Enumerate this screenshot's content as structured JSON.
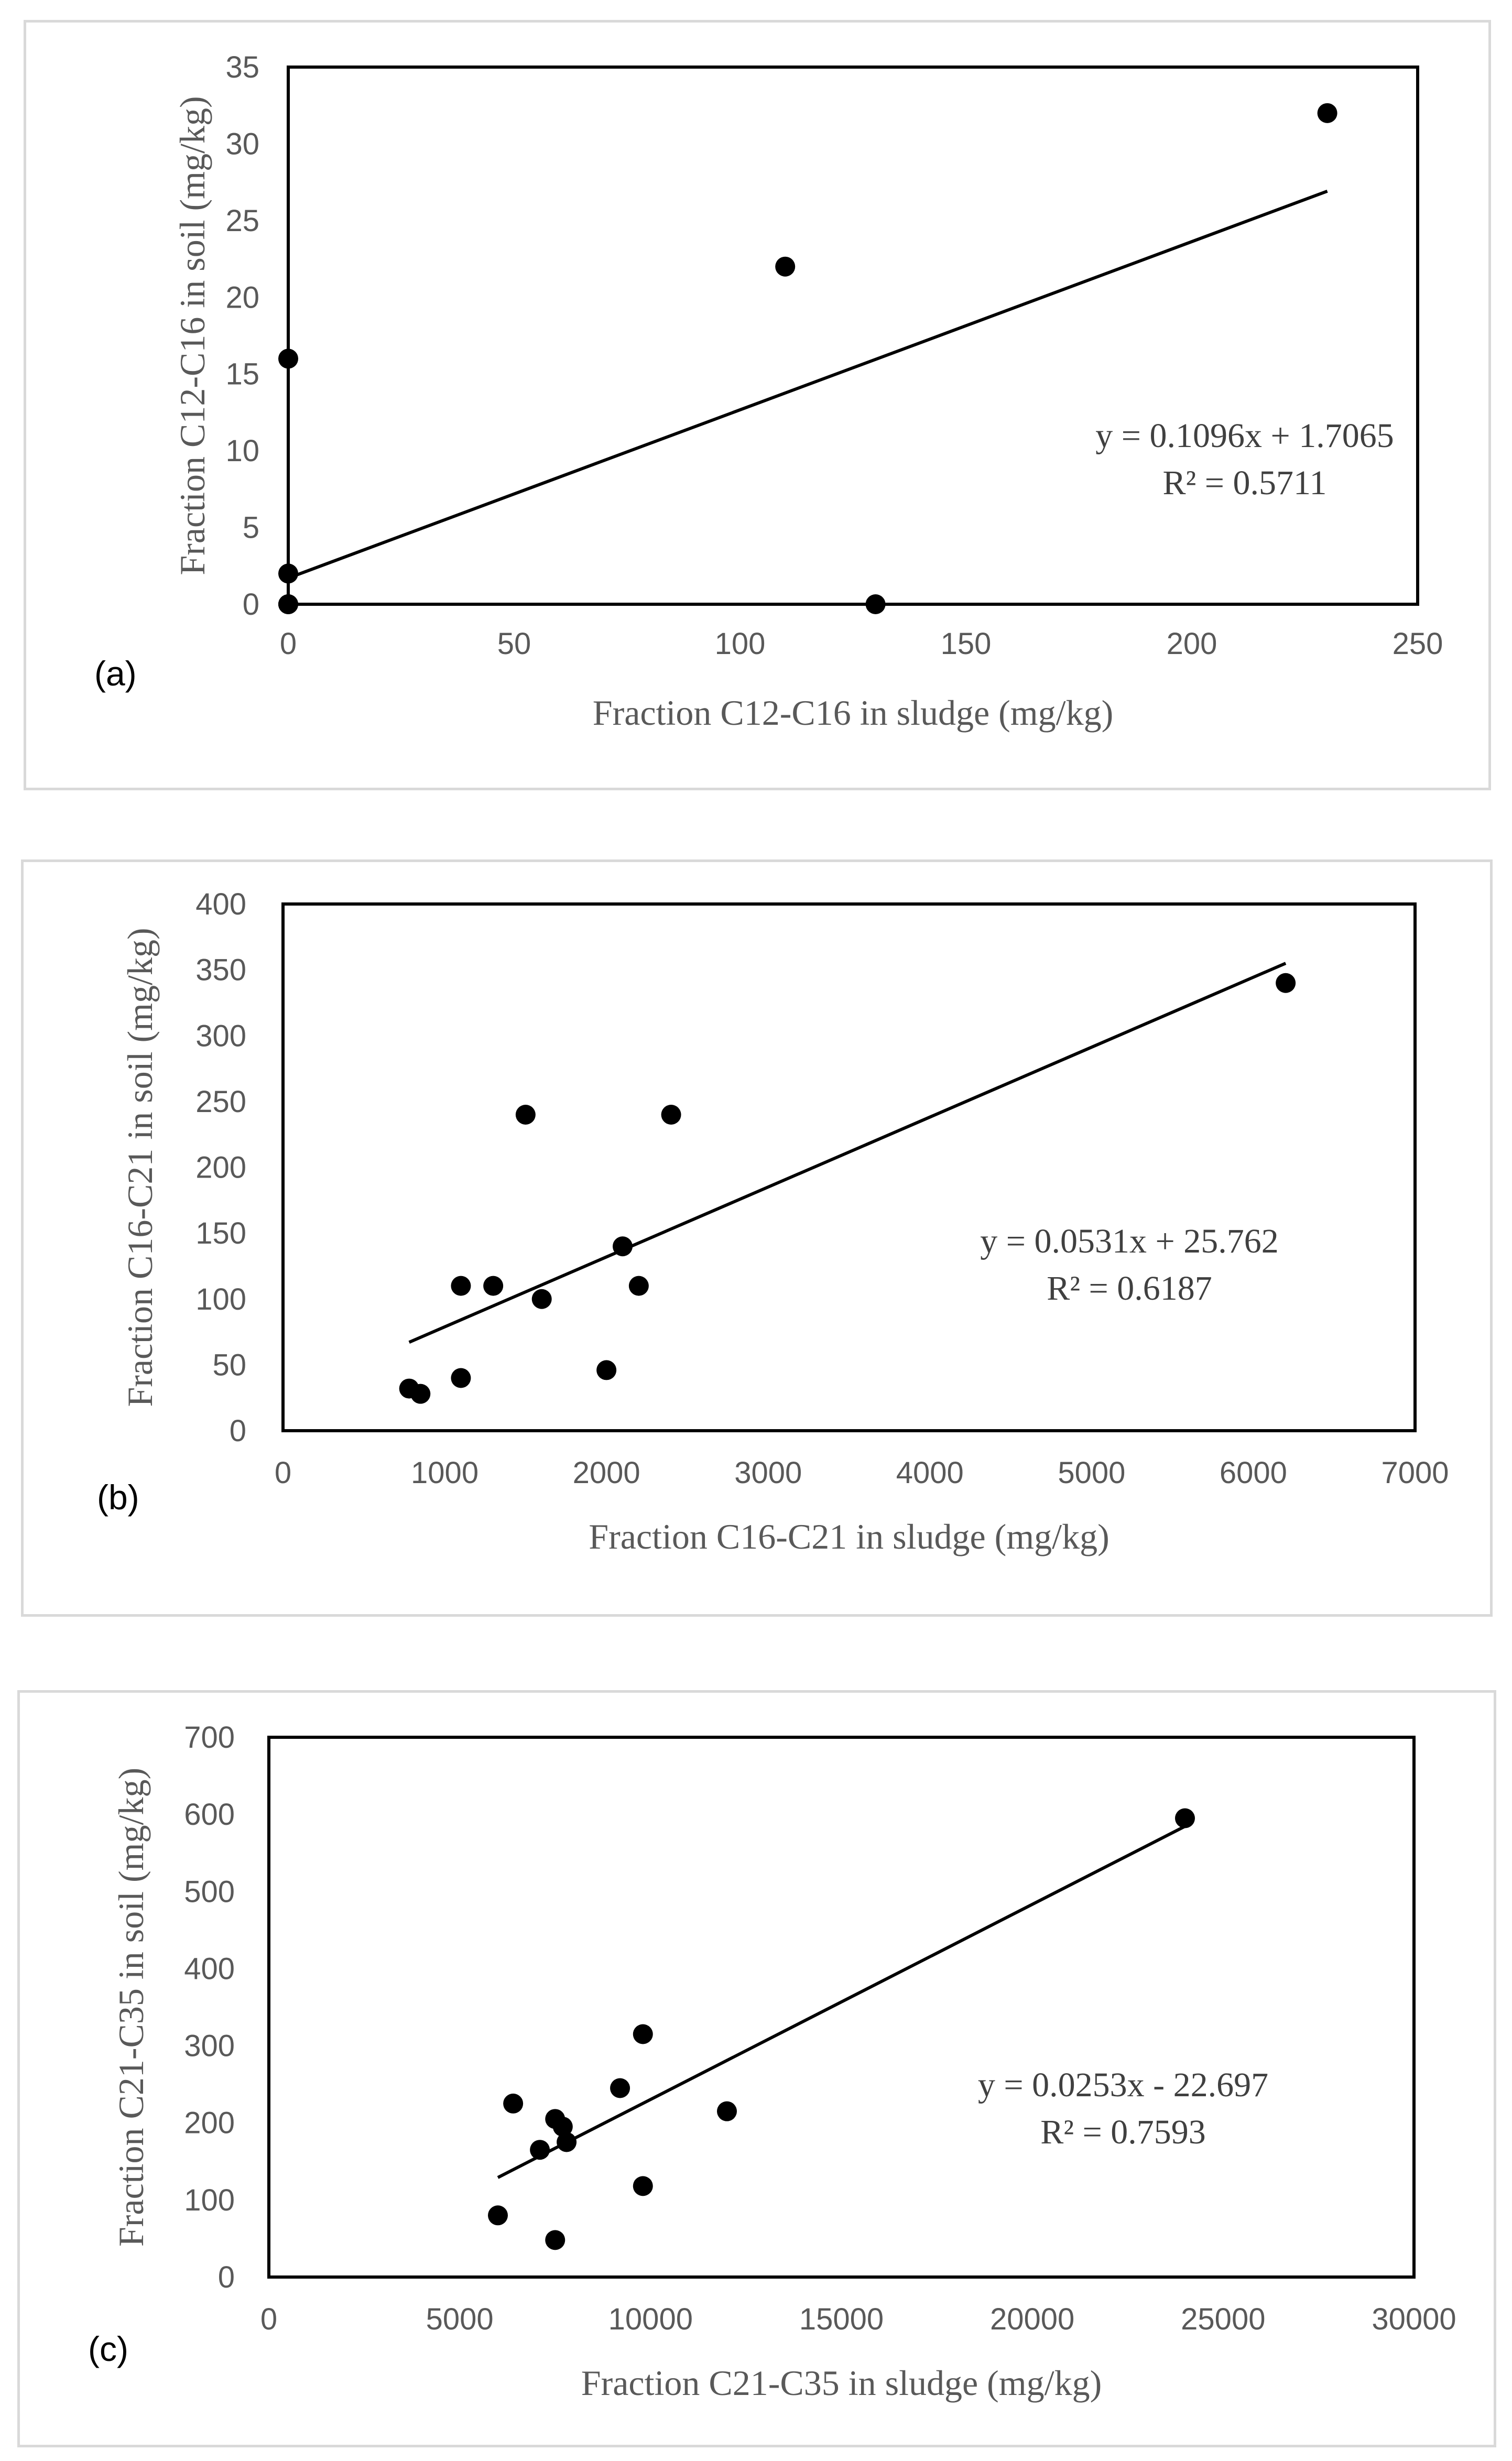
{
  "chart_data": [
    {
      "type": "scatter",
      "panel_label": "(a)",
      "xlabel": "Fraction C12-C16 in sludge (mg/kg)",
      "ylabel": "Fraction C12-C16 in soil (mg/kg)",
      "xlim": [
        0,
        250
      ],
      "ylim": [
        0,
        35
      ],
      "xticks": [
        0,
        50,
        100,
        150,
        200,
        250
      ],
      "yticks": [
        0,
        5,
        10,
        15,
        20,
        25,
        30,
        35
      ],
      "points": [
        [
          0,
          16
        ],
        [
          0,
          2
        ],
        [
          0,
          0
        ],
        [
          0,
          0
        ],
        [
          0,
          0
        ],
        [
          110,
          22
        ],
        [
          130,
          0
        ],
        [
          230,
          32
        ]
      ],
      "trendline": {
        "slope": 0.1096,
        "intercept": 1.7065,
        "x_range": [
          0,
          230
        ]
      },
      "equation": "y = 0.1096x + 1.7065",
      "r2": "R² = 0.5711"
    },
    {
      "type": "scatter",
      "panel_label": "(b)",
      "xlabel": "Fraction C16-C21 in sludge (mg/kg)",
      "ylabel": "Fraction C16-C21 in soil (mg/kg)",
      "xlim": [
        0,
        7000
      ],
      "ylim": [
        0,
        400
      ],
      "xticks": [
        0,
        1000,
        2000,
        3000,
        4000,
        5000,
        6000,
        7000
      ],
      "yticks": [
        0,
        50,
        100,
        150,
        200,
        250,
        300,
        350,
        400
      ],
      "points": [
        [
          780,
          32
        ],
        [
          850,
          28
        ],
        [
          1100,
          110
        ],
        [
          1100,
          40
        ],
        [
          1300,
          110
        ],
        [
          1500,
          240
        ],
        [
          1600,
          100
        ],
        [
          2000,
          46
        ],
        [
          2100,
          140
        ],
        [
          2200,
          110
        ],
        [
          2400,
          240
        ],
        [
          6200,
          340
        ]
      ],
      "trendline": {
        "slope": 0.0531,
        "intercept": 25.762,
        "x_range": [
          780,
          6200
        ]
      },
      "equation": "y = 0.0531x + 25.762",
      "r2": "R² = 0.6187"
    },
    {
      "type": "scatter",
      "panel_label": "(c)",
      "xlabel": "Fraction C21-C35 in sludge (mg/kg)",
      "ylabel": "Fraction C21-C35 in soil (mg/kg)",
      "xlim": [
        0,
        30000
      ],
      "ylim": [
        0,
        700
      ],
      "xticks": [
        0,
        5000,
        10000,
        15000,
        20000,
        25000,
        30000
      ],
      "yticks": [
        0,
        100,
        200,
        300,
        400,
        500,
        600,
        700
      ],
      "points": [
        [
          6000,
          80
        ],
        [
          6400,
          225
        ],
        [
          7100,
          165
        ],
        [
          7500,
          205
        ],
        [
          7500,
          48
        ],
        [
          7700,
          195
        ],
        [
          7800,
          175
        ],
        [
          9200,
          245
        ],
        [
          9800,
          315
        ],
        [
          9800,
          118
        ],
        [
          12000,
          215
        ],
        [
          24000,
          595
        ]
      ],
      "trendline": {
        "slope": 0.0253,
        "intercept": -22.697,
        "x_range": [
          6000,
          24000
        ]
      },
      "equation": "y = 0.0253x - 22.697",
      "r2": "R² = 0.7593"
    }
  ]
}
